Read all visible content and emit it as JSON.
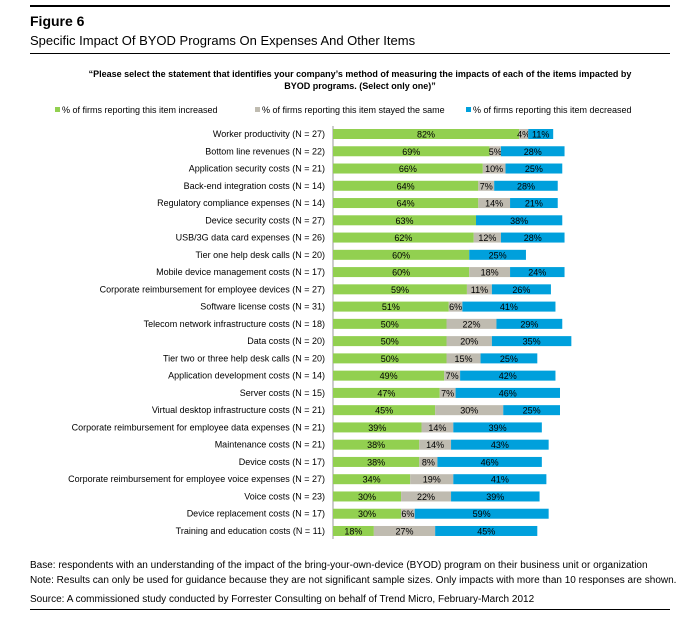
{
  "figure_label": "Figure 6",
  "title": "Specific Impact Of BYOD Programs On Expenses And Other Items",
  "question": "“Please select the statement that identifies your company’s method of measuring the impacts of each of the items impacted by BYOD programs.  (Select only one)”",
  "base_note": "Base: respondents with an understanding of the impact of the bring-your-own-device (BYOD) program on their business unit or organization",
  "note": "Note: Results can only be used for guidance because they are not significant sample sizes. Only impacts with more than 10 responses are shown.",
  "source": "Source: A commissioned study conducted by Forrester Consulting on behalf of Trend Micro, February-March 2012",
  "chart_data": {
    "type": "bar",
    "orientation": "horizontal",
    "stacked": true,
    "legend_placement": "top",
    "categories": [
      "Worker productivity (N = 27)",
      "Bottom line revenues (N = 22)",
      "Application security costs (N = 21)",
      "Back-end integration costs (N = 14)",
      "Regulatory compliance expenses (N = 14)",
      "Device security costs (N = 27)",
      "USB/3G data card expenses (N = 26)",
      "Tier one help desk calls (N = 20)",
      "Mobile device management costs (N = 17)",
      "Corporate reimbursement for employee devices (N = 27)",
      "Software license costs (N = 31)",
      "Telecom network infrastructure costs (N = 18)",
      "Data costs (N = 20)",
      "Tier two or three help desk calls (N = 20)",
      "Application development costs (N = 14)",
      "Server costs (N = 15)",
      "Virtual desktop infrastructure costs (N = 21)",
      "Corporate reimbursement for employee data expenses (N = 21)",
      "Maintenance costs (N = 21)",
      "Device costs (N = 17)",
      "Corporate reimbursement for employee voice expenses (N = 27)",
      "Voice costs (N = 23)",
      "Device replacement costs (N = 17)",
      "Training and education costs (N = 11)"
    ],
    "series": [
      {
        "name": "% of firms reporting this item increased",
        "color": "#92d050",
        "values": [
          82,
          69,
          66,
          64,
          64,
          63,
          62,
          60,
          60,
          59,
          51,
          50,
          50,
          50,
          49,
          47,
          45,
          39,
          38,
          38,
          34,
          30,
          30,
          18
        ]
      },
      {
        "name": "% of firms reporting this item stayed the same",
        "color": "#bfbbb0",
        "values": [
          4,
          5,
          10,
          7,
          14,
          0,
          12,
          0,
          18,
          11,
          6,
          22,
          20,
          15,
          7,
          7,
          30,
          14,
          14,
          8,
          19,
          22,
          6,
          27
        ]
      },
      {
        "name": "% of firms reporting this item decreased",
        "color": "#00a0dc",
        "values": [
          11,
          28,
          25,
          28,
          21,
          38,
          28,
          25,
          24,
          26,
          41,
          29,
          35,
          25,
          42,
          46,
          25,
          39,
          43,
          46,
          41,
          39,
          59,
          45
        ]
      }
    ]
  }
}
